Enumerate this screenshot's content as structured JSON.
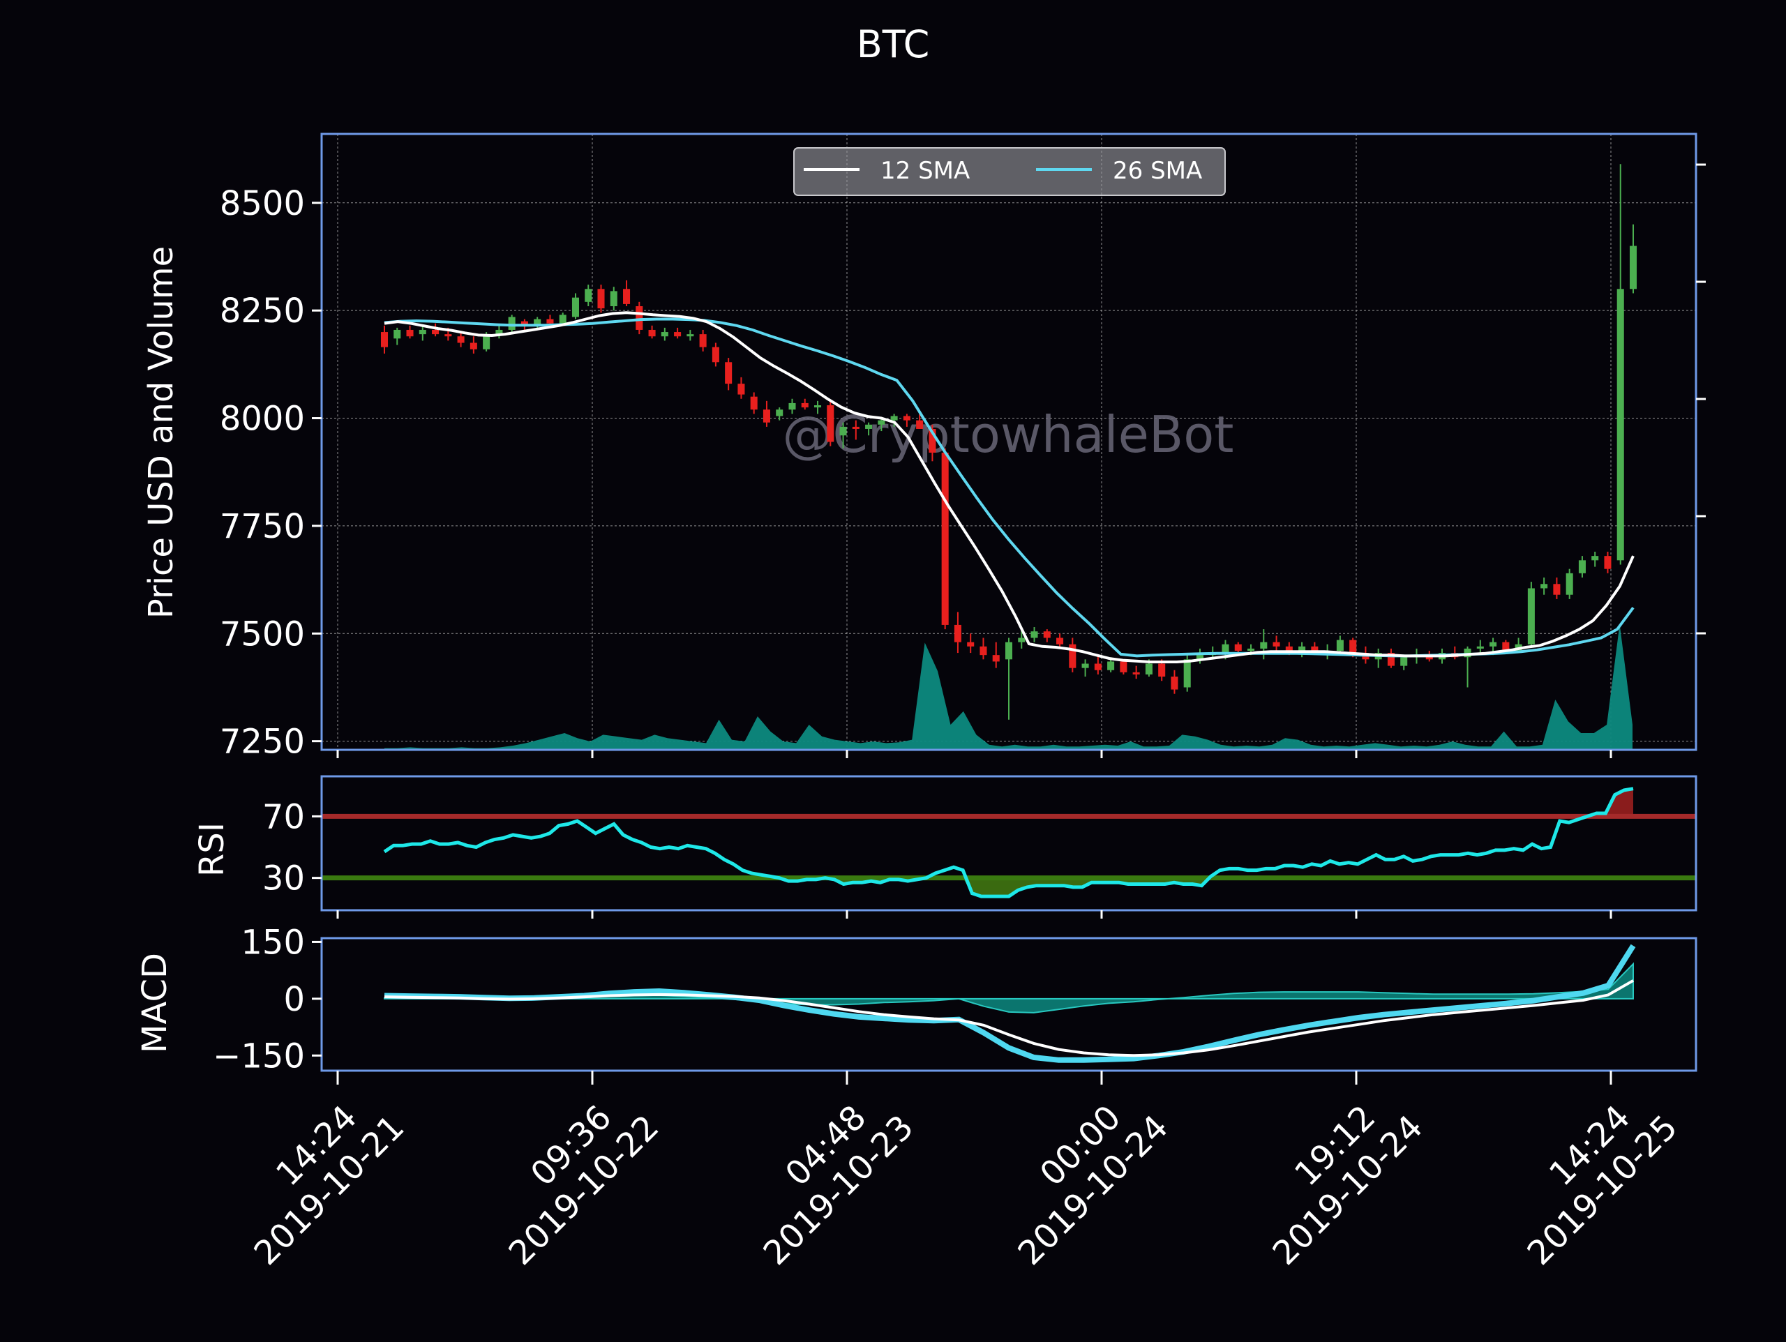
{
  "chart_data": [
    {
      "panel": "price",
      "type": "candlestick",
      "title": "BTC",
      "ylabel": "Price USD and Volume",
      "ylim": [
        7230,
        8660
      ],
      "y_ticks": [
        7250,
        7500,
        7750,
        8000,
        8250,
        8500
      ],
      "watermark": "@CryptowhaleBot",
      "legend": {
        "placement": "top-center",
        "entries": [
          "12 SMA",
          "26 SMA"
        ]
      },
      "grid": true,
      "colors": {
        "up": "#4caf50",
        "down": "#e8201e",
        "sma12": "#ffffff",
        "sma26": "#5fd8f0",
        "volume": "#0d8a80",
        "frame": "#6f9ae8",
        "text": "#ffffff"
      },
      "candles": [
        [
          8200,
          8215,
          8150,
          8165
        ],
        [
          8185,
          8210,
          8170,
          8205
        ],
        [
          8205,
          8215,
          8185,
          8190
        ],
        [
          8195,
          8215,
          8180,
          8205
        ],
        [
          8205,
          8220,
          8190,
          8195
        ],
        [
          8195,
          8210,
          8180,
          8190
        ],
        [
          8190,
          8200,
          8165,
          8175
        ],
        [
          8175,
          8190,
          8150,
          8160
        ],
        [
          8160,
          8200,
          8155,
          8195
        ],
        [
          8195,
          8215,
          8185,
          8205
        ],
        [
          8205,
          8240,
          8200,
          8235
        ],
        [
          8225,
          8230,
          8205,
          8215
        ],
        [
          8215,
          8235,
          8210,
          8230
        ],
        [
          8230,
          8240,
          8215,
          8220
        ],
        [
          8220,
          8245,
          8215,
          8240
        ],
        [
          8235,
          8290,
          8230,
          8280
        ],
        [
          8270,
          8310,
          8260,
          8300
        ],
        [
          8300,
          8310,
          8245,
          8255
        ],
        [
          8260,
          8305,
          8250,
          8295
        ],
        [
          8300,
          8320,
          8260,
          8265
        ],
        [
          8260,
          8270,
          8195,
          8205
        ],
        [
          8205,
          8215,
          8185,
          8190
        ],
        [
          8190,
          8210,
          8180,
          8200
        ],
        [
          8200,
          8210,
          8185,
          8190
        ],
        [
          8190,
          8205,
          8180,
          8195
        ],
        [
          8195,
          8205,
          8155,
          8165
        ],
        [
          8165,
          8175,
          8120,
          8130
        ],
        [
          8130,
          8140,
          8065,
          8080
        ],
        [
          8080,
          8095,
          8045,
          8055
        ],
        [
          8050,
          8060,
          8010,
          8020
        ],
        [
          8020,
          8040,
          7980,
          7990
        ],
        [
          8005,
          8025,
          7995,
          8020
        ],
        [
          8020,
          8045,
          8010,
          8035
        ],
        [
          8035,
          8045,
          8020,
          8025
        ],
        [
          8025,
          8040,
          8010,
          8030
        ],
        [
          8030,
          8040,
          7935,
          7945
        ],
        [
          7960,
          7990,
          7930,
          7980
        ],
        [
          7980,
          7995,
          7950,
          7975
        ],
        [
          7975,
          7990,
          7960,
          7985
        ],
        [
          7985,
          8000,
          7970,
          7995
        ],
        [
          7995,
          8010,
          7980,
          8005
        ],
        [
          8005,
          8010,
          7980,
          7995
        ],
        [
          7995,
          8010,
          7975,
          7975
        ],
        [
          7975,
          7985,
          7900,
          7920
        ],
        [
          7920,
          7930,
          7510,
          7520
        ],
        [
          7520,
          7550,
          7455,
          7480
        ],
        [
          7480,
          7500,
          7455,
          7470
        ],
        [
          7470,
          7490,
          7440,
          7450
        ],
        [
          7450,
          7480,
          7420,
          7435
        ],
        [
          7440,
          7490,
          7300,
          7480
        ],
        [
          7480,
          7510,
          7465,
          7490
        ],
        [
          7490,
          7515,
          7480,
          7505
        ],
        [
          7505,
          7510,
          7480,
          7490
        ],
        [
          7490,
          7500,
          7465,
          7475
        ],
        [
          7475,
          7490,
          7410,
          7420
        ],
        [
          7420,
          7440,
          7400,
          7430
        ],
        [
          7430,
          7450,
          7405,
          7415
        ],
        [
          7415,
          7445,
          7410,
          7435
        ],
        [
          7435,
          7440,
          7405,
          7410
        ],
        [
          7410,
          7425,
          7395,
          7405
        ],
        [
          7405,
          7440,
          7400,
          7430
        ],
        [
          7430,
          7440,
          7390,
          7400
        ],
        [
          7400,
          7415,
          7360,
          7370
        ],
        [
          7375,
          7450,
          7365,
          7440
        ],
        [
          7440,
          7465,
          7430,
          7450
        ],
        [
          7450,
          7470,
          7440,
          7455
        ],
        [
          7455,
          7485,
          7440,
          7475
        ],
        [
          7475,
          7480,
          7450,
          7460
        ],
        [
          7460,
          7475,
          7450,
          7465
        ],
        [
          7465,
          7510,
          7440,
          7480
        ],
        [
          7480,
          7495,
          7455,
          7470
        ],
        [
          7470,
          7480,
          7450,
          7460
        ],
        [
          7460,
          7480,
          7445,
          7470
        ],
        [
          7470,
          7480,
          7450,
          7455
        ],
        [
          7455,
          7475,
          7440,
          7460
        ],
        [
          7460,
          7495,
          7450,
          7485
        ],
        [
          7485,
          7490,
          7445,
          7455
        ],
        [
          7455,
          7470,
          7430,
          7440
        ],
        [
          7440,
          7465,
          7420,
          7455
        ],
        [
          7455,
          7465,
          7420,
          7425
        ],
        [
          7425,
          7450,
          7415,
          7445
        ],
        [
          7445,
          7465,
          7430,
          7450
        ],
        [
          7450,
          7460,
          7435,
          7440
        ],
        [
          7440,
          7465,
          7430,
          7455
        ],
        [
          7455,
          7470,
          7440,
          7445
        ],
        [
          7445,
          7470,
          7375,
          7465
        ],
        [
          7465,
          7485,
          7450,
          7470
        ],
        [
          7470,
          7490,
          7450,
          7480
        ],
        [
          7480,
          7485,
          7455,
          7460
        ],
        [
          7460,
          7490,
          7455,
          7475
        ],
        [
          7475,
          7620,
          7470,
          7605
        ],
        [
          7605,
          7630,
          7590,
          7615
        ],
        [
          7615,
          7630,
          7580,
          7590
        ],
        [
          7590,
          7650,
          7580,
          7640
        ],
        [
          7640,
          7680,
          7630,
          7670
        ],
        [
          7670,
          7690,
          7655,
          7680
        ],
        [
          7680,
          7690,
          7640,
          7650
        ],
        [
          7670,
          8590,
          7660,
          8300
        ],
        [
          8300,
          8450,
          8290,
          8400
        ]
      ],
      "sma12": [
        8220,
        8224,
        8220,
        8214,
        8208,
        8204,
        8198,
        8193,
        8192,
        8195,
        8200,
        8205,
        8210,
        8215,
        8222,
        8230,
        8238,
        8243,
        8245,
        8243,
        8240,
        8238,
        8236,
        8232,
        8224,
        8208,
        8188,
        8164,
        8140,
        8121,
        8104,
        8086,
        8066,
        8045,
        8026,
        8012,
        8004,
        8000,
        7990,
        7956,
        7902,
        7848,
        7796,
        7748,
        7700,
        7650,
        7598,
        7540,
        7476,
        7470,
        7468,
        7464,
        7458,
        7450,
        7442,
        7438,
        7436,
        7434,
        7434,
        7434,
        7436,
        7440,
        7444,
        7448,
        7452,
        7456,
        7458,
        7458,
        7458,
        7458,
        7458,
        7456,
        7454,
        7452,
        7450,
        7450,
        7448,
        7448,
        7448,
        7448,
        7450,
        7452,
        7454,
        7458,
        7462,
        7468,
        7472,
        7482,
        7495,
        7510,
        7530,
        7565,
        7610,
        7680
      ],
      "sma26": [
        8222,
        8225,
        8226,
        8225,
        8223,
        8221,
        8219,
        8217,
        8216,
        8216,
        8216,
        8217,
        8218,
        8220,
        8223,
        8226,
        8229,
        8230,
        8230,
        8229,
        8227,
        8222,
        8215,
        8205,
        8192,
        8180,
        8168,
        8157,
        8145,
        8132,
        8118,
        8102,
        8088,
        8040,
        7980,
        7922,
        7868,
        7815,
        7764,
        7718,
        7675,
        7634,
        7594,
        7558,
        7524,
        7487,
        7452,
        7448,
        7450,
        7451,
        7452,
        7453,
        7454,
        7454,
        7454,
        7454,
        7454,
        7454,
        7453,
        7452,
        7451,
        7450,
        7449,
        7448,
        7448,
        7449,
        7450,
        7451,
        7452,
        7453,
        7455,
        7458,
        7462,
        7468,
        7474,
        7482,
        7490,
        7510,
        7560
      ]
    },
    {
      "panel": "rsi",
      "type": "line",
      "ylabel": "RSI",
      "ylim": [
        9,
        96
      ],
      "y_ticks": [
        30,
        70
      ],
      "thresholds": [
        70,
        30
      ],
      "colors": {
        "line": "#1ee8e8",
        "over": "#8a1c1c",
        "under": "#3a6a10",
        "high": "#a52a2a",
        "low": "#3a7a10"
      },
      "values": [
        47,
        51,
        51,
        52,
        52,
        54,
        52,
        52,
        53,
        51,
        50,
        53,
        55,
        56,
        58,
        57,
        56,
        57,
        59,
        64,
        65,
        67,
        63,
        59,
        62,
        65,
        58,
        55,
        53,
        50,
        49,
        50,
        49,
        51,
        50,
        49,
        46,
        42,
        39,
        35,
        33,
        32,
        31,
        30,
        28,
        28,
        29,
        29,
        30,
        29,
        26,
        27,
        27,
        28,
        27,
        29,
        29,
        28,
        29,
        30,
        33,
        35,
        37,
        35,
        20,
        18,
        18,
        18,
        18,
        22,
        24,
        25,
        25,
        25,
        25,
        24,
        24,
        27,
        27,
        27,
        27,
        26,
        26,
        26,
        26,
        26,
        27,
        26,
        26,
        25,
        31,
        35,
        36,
        36,
        35,
        35,
        36,
        36,
        38,
        38,
        37,
        39,
        38,
        41,
        39,
        40,
        39,
        42,
        45,
        42,
        42,
        44,
        41,
        42,
        44,
        45,
        45,
        45,
        46,
        45,
        46,
        48,
        48,
        49,
        48,
        52,
        49,
        50,
        67,
        66,
        68,
        70,
        72,
        72,
        84,
        87,
        88
      ],
      "x_end_index": 136
    },
    {
      "panel": "macd",
      "type": "line",
      "ylabel": "MACD",
      "ylim": [
        -190,
        160
      ],
      "y_ticks": [
        150,
        0,
        -150
      ],
      "y_tick_labels": [
        "150",
        "0",
        "−150"
      ],
      "colors": {
        "macd": "#4fd8f0",
        "signal": "#ffffff",
        "hist_fill": "#0d8a80",
        "hist_stroke": "#28c8c0"
      },
      "macd": [
        8,
        7,
        6,
        5,
        3,
        1,
        2,
        5,
        8,
        14,
        18,
        20,
        16,
        10,
        4,
        -4,
        -18,
        -30,
        -40,
        -48,
        -52,
        -56,
        -58,
        -55,
        -90,
        -130,
        -155,
        -162,
        -162,
        -160,
        -158,
        -150,
        -140,
        -126,
        -110,
        -95,
        -82,
        -70,
        -60,
        -50,
        -42,
        -36,
        -30,
        -24,
        -18,
        -12,
        -5,
        5,
        15,
        35,
        140
      ],
      "signal": [
        5,
        4,
        3,
        2,
        0,
        -1,
        0,
        2,
        5,
        8,
        10,
        11,
        10,
        8,
        6,
        2,
        -5,
        -14,
        -24,
        -34,
        -42,
        -48,
        -53,
        -56,
        -70,
        -95,
        -118,
        -134,
        -143,
        -148,
        -150,
        -148,
        -143,
        -135,
        -124,
        -112,
        -100,
        -88,
        -78,
        -68,
        -58,
        -50,
        -42,
        -36,
        -30,
        -24,
        -18,
        -11,
        -4,
        10,
        48
      ],
      "hist": [
        2,
        2,
        2,
        2,
        2,
        2,
        2,
        3,
        3,
        6,
        8,
        9,
        6,
        2,
        -2,
        -6,
        -13,
        -16,
        -16,
        -14,
        -10,
        -8,
        -5,
        0,
        -20,
        -35,
        -37,
        -28,
        -19,
        -12,
        -8,
        -2,
        3,
        9,
        14,
        17,
        18,
        18,
        18,
        18,
        16,
        14,
        12,
        12,
        12,
        12,
        13,
        16,
        19,
        25,
        92
      ]
    },
    {
      "panel": "x_axis",
      "type": "time_axis",
      "tick_labels": [
        [
          "14:24",
          "2019-10-21"
        ],
        [
          "09:36",
          "2019-10-22"
        ],
        [
          "04:48",
          "2019-10-23"
        ],
        [
          "00:00",
          "2019-10-24"
        ],
        [
          "19:12",
          "2019-10-24"
        ],
        [
          "14:24",
          "2019-10-25"
        ]
      ]
    }
  ]
}
